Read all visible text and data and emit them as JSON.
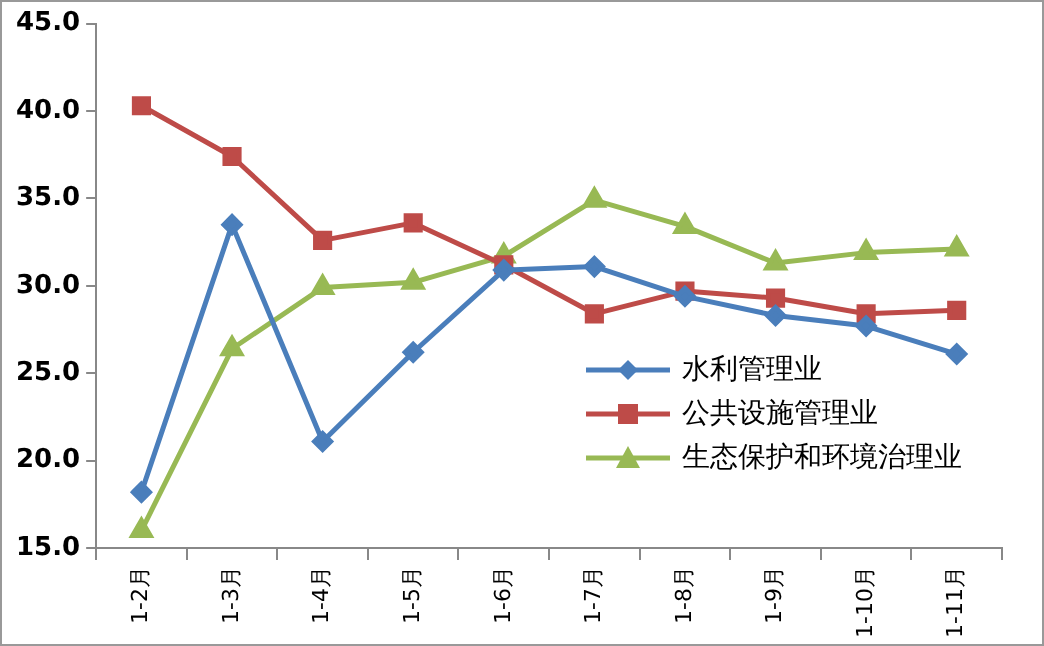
{
  "chart_data": {
    "type": "line",
    "categories": [
      "1-2月",
      "1-3月",
      "1-4月",
      "1-5月",
      "1-6月",
      "1-7月",
      "1-8月",
      "1-9月",
      "1-10月",
      "1-11月"
    ],
    "series": [
      {
        "name": "水利管理业",
        "color": "#4a7ebb",
        "marker": "diamond",
        "values": [
          18.2,
          33.5,
          21.1,
          26.2,
          30.9,
          31.1,
          29.4,
          28.3,
          27.7,
          26.1
        ]
      },
      {
        "name": "公共设施管理业",
        "color": "#be4b48",
        "marker": "square",
        "values": [
          40.3,
          37.4,
          32.6,
          33.6,
          31.2,
          28.4,
          29.7,
          29.3,
          28.4,
          28.6
        ]
      },
      {
        "name": "生态保护和环境治理业",
        "color": "#98b954",
        "marker": "triangle",
        "values": [
          16.0,
          26.4,
          29.9,
          30.2,
          31.7,
          34.9,
          33.4,
          31.3,
          31.9,
          32.1
        ]
      }
    ],
    "ylim": [
      15,
      45
    ],
    "yticks": [
      {
        "value": 15,
        "label": "15.0"
      },
      {
        "value": 20,
        "label": "20.0"
      },
      {
        "value": 25,
        "label": "25.0"
      },
      {
        "value": 30,
        "label": "30.0"
      },
      {
        "value": 35,
        "label": "35.0"
      },
      {
        "value": 40,
        "label": "40.0"
      },
      {
        "value": 45,
        "label": "45.0"
      }
    ],
    "grid": false,
    "legend": "bottom right",
    "line_style": "solid"
  }
}
